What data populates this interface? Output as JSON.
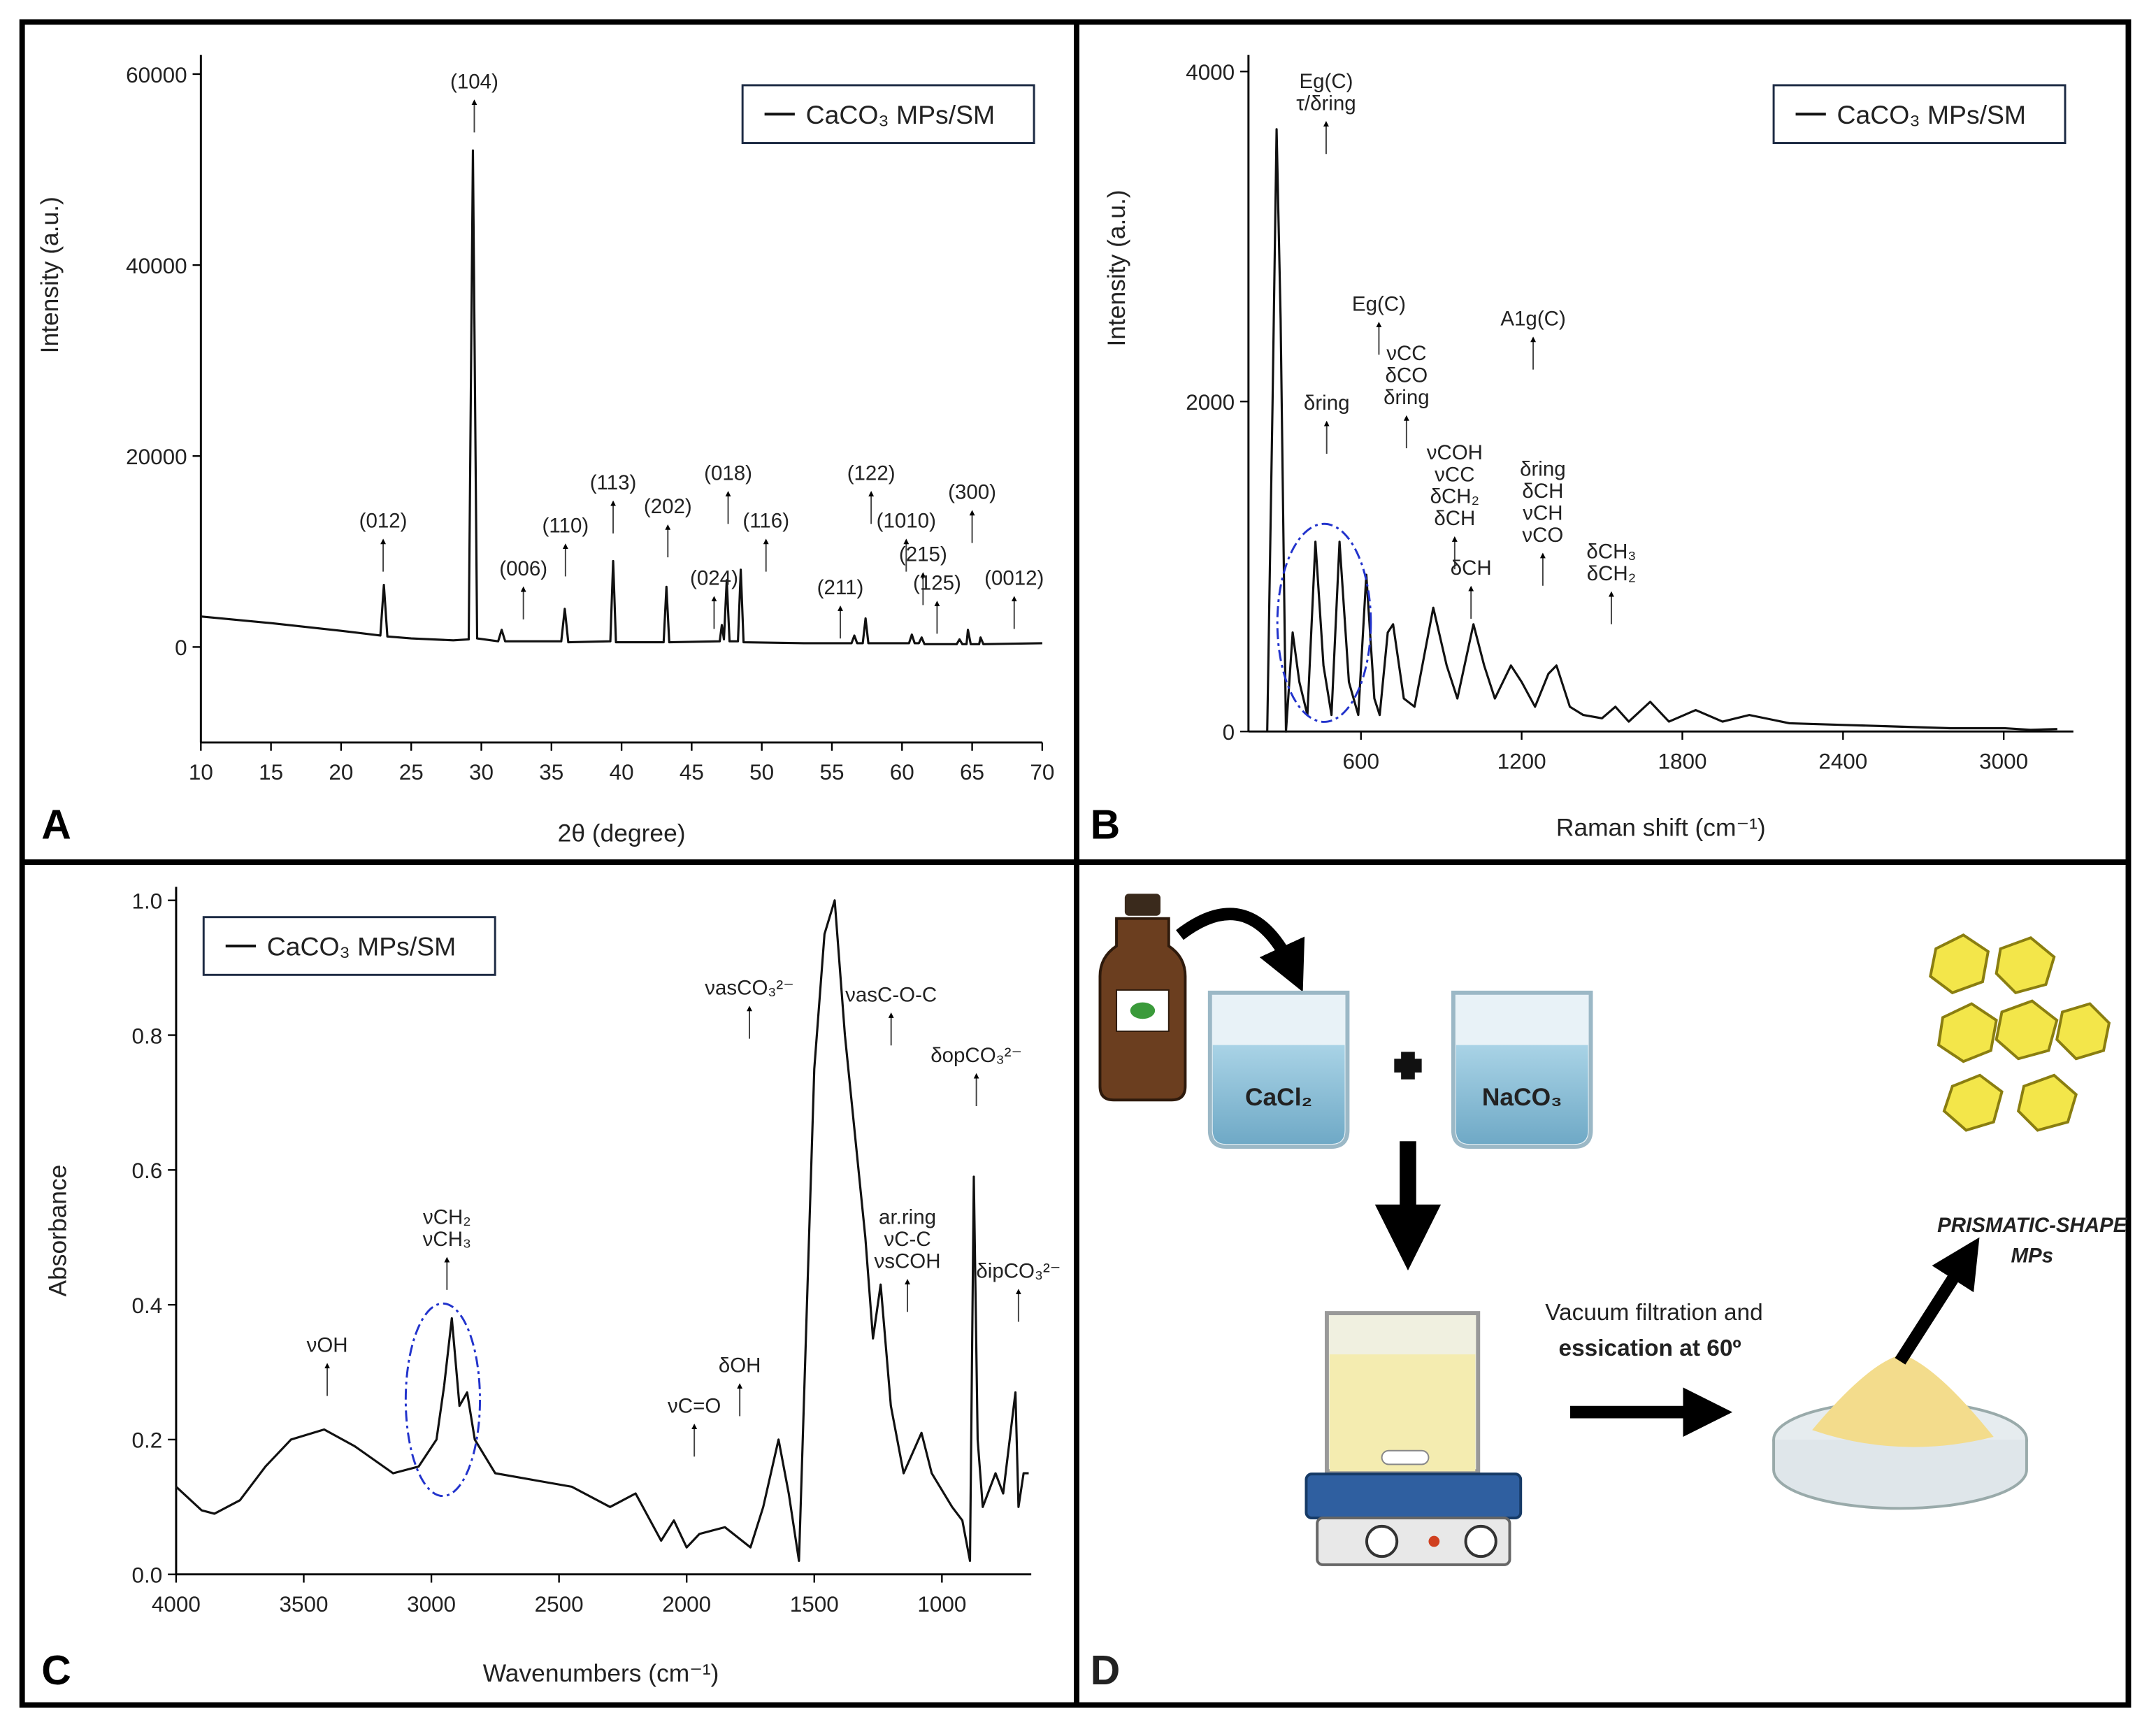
{
  "chart_data": [
    {
      "type": "line",
      "panel": "A",
      "x_label": "2θ (degree)",
      "y_label": "Intensity (a.u.)",
      "legend": "top-right",
      "xlim": [
        10,
        70
      ],
      "ylim": [
        -10000,
        62000
      ],
      "xticks": [
        10,
        15,
        20,
        25,
        30,
        35,
        40,
        45,
        50,
        55,
        60,
        65,
        70
      ],
      "yticks": [
        0,
        20000,
        40000,
        60000
      ],
      "series": [
        {
          "name": "CaCO₃ MPs/SM",
          "color": "#111111",
          "x": [
            10,
            15,
            20,
            22.8,
            23.05,
            23.3,
            25,
            28,
            29.1,
            29.4,
            29.7,
            31.2,
            31.45,
            31.7,
            35.7,
            35.95,
            36.2,
            39.2,
            39.4,
            39.6,
            43.0,
            43.2,
            43.4,
            47.0,
            47.15,
            47.3,
            47.5,
            47.7,
            48.3,
            48.5,
            48.7,
            53,
            56.4,
            56.6,
            56.8,
            57.2,
            57.4,
            57.6,
            60.5,
            60.7,
            60.9,
            61.2,
            61.4,
            61.6,
            63.9,
            64.1,
            64.3,
            64.6,
            64.7,
            64.9,
            65.5,
            65.6,
            65.8,
            70
          ],
          "values": [
            3200,
            2500,
            1700,
            1200,
            6500,
            1100,
            900,
            700,
            800,
            52000,
            900,
            600,
            1800,
            600,
            600,
            4000,
            500,
            600,
            9000,
            500,
            500,
            6300,
            500,
            600,
            2300,
            800,
            7000,
            600,
            600,
            8100,
            500,
            400,
            400,
            1200,
            400,
            400,
            3000,
            400,
            400,
            1300,
            400,
            400,
            1000,
            300,
            300,
            800,
            300,
            300,
            1800,
            300,
            300,
            1000,
            300,
            400
          ]
        }
      ],
      "annotations": [
        {
          "lines": [
            "(012)"
          ],
          "x": 23,
          "y": 12500
        },
        {
          "lines": [
            "(104)"
          ],
          "x": 29.5,
          "y": 58500
        },
        {
          "lines": [
            "(006)"
          ],
          "x": 33,
          "y": 7500
        },
        {
          "lines": [
            "(110)"
          ],
          "x": 36,
          "y": 12000
        },
        {
          "lines": [
            "(113)"
          ],
          "x": 39.4,
          "y": 16500
        },
        {
          "lines": [
            "(202)"
          ],
          "x": 43.3,
          "y": 14000
        },
        {
          "lines": [
            "(024)"
          ],
          "x": 46.6,
          "y": 6500
        },
        {
          "lines": [
            "(018)"
          ],
          "x": 47.6,
          "y": 17500
        },
        {
          "lines": [
            "(116)"
          ],
          "x": 50.3,
          "y": 12500
        },
        {
          "lines": [
            "(211)"
          ],
          "x": 55.6,
          "y": 5500
        },
        {
          "lines": [
            "(122)"
          ],
          "x": 57.8,
          "y": 17500
        },
        {
          "lines": [
            "(1010)"
          ],
          "x": 60.3,
          "y": 12500
        },
        {
          "lines": [
            "(215)"
          ],
          "x": 61.5,
          "y": 9000
        },
        {
          "lines": [
            "(125)"
          ],
          "x": 62.5,
          "y": 6000
        },
        {
          "lines": [
            "(300)"
          ],
          "x": 65,
          "y": 15500
        },
        {
          "lines": [
            "(0012)"
          ],
          "x": 68,
          "y": 6500
        }
      ]
    },
    {
      "type": "line",
      "panel": "B",
      "x_label": "Raman shift (cm⁻¹)",
      "y_label": "Intensity (a.u.)",
      "legend": "top-right",
      "xlim": [
        180,
        3260
      ],
      "ylim": [
        0,
        4100
      ],
      "xticks": [
        600,
        1200,
        1800,
        2400,
        3000
      ],
      "yticks": [
        0,
        2000,
        4000
      ],
      "series": [
        {
          "name": "CaCO₃ MPs/SM",
          "color": "#111111",
          "x": [
            250,
            270,
            285,
            300,
            320,
            345,
            370,
            400,
            430,
            460,
            490,
            520,
            555,
            590,
            620,
            650,
            670,
            700,
            720,
            760,
            800,
            870,
            920,
            960,
            1020,
            1060,
            1100,
            1160,
            1200,
            1250,
            1300,
            1330,
            1380,
            1430,
            1500,
            1550,
            1600,
            1680,
            1750,
            1850,
            1950,
            2050,
            2200,
            2400,
            2600,
            2800,
            3000,
            3100,
            3200
          ],
          "values": [
            0,
            2000,
            3650,
            2500,
            0,
            600,
            300,
            100,
            1150,
            400,
            100,
            1150,
            300,
            100,
            950,
            200,
            100,
            600,
            650,
            200,
            150,
            750,
            400,
            200,
            650,
            400,
            200,
            400,
            300,
            150,
            350,
            400,
            150,
            100,
            80,
            150,
            60,
            180,
            60,
            130,
            60,
            100,
            50,
            40,
            30,
            20,
            20,
            10,
            15
          ]
        }
      ],
      "annotations": [
        {
          "lines": [
            "Eg(C)",
            "τ/δring"
          ],
          "x": 470,
          "y": 3900
        },
        {
          "lines": [
            "δring"
          ],
          "x": 472,
          "y": 1950
        },
        {
          "lines": [
            "Eg(C)"
          ],
          "x": 667,
          "y": 2550
        },
        {
          "lines": [
            "νCC",
            "δCO",
            "δring"
          ],
          "x": 770,
          "y": 2250
        },
        {
          "lines": [
            "νCOH",
            "νCC",
            "δCH₂",
            "δCH"
          ],
          "x": 950,
          "y": 1650
        },
        {
          "lines": [
            "δCH"
          ],
          "x": 1011,
          "y": 950
        },
        {
          "lines": [
            "A1g(C)"
          ],
          "x": 1243,
          "y": 2460
        },
        {
          "lines": [
            "δring",
            "δCH",
            "νCH",
            "νCO"
          ],
          "x": 1279,
          "y": 1550
        },
        {
          "lines": [
            "δCH₃",
            "δCH₂"
          ],
          "x": 1535,
          "y": 1050
        }
      ]
    },
    {
      "type": "line",
      "panel": "C",
      "x_label": "Wavenumbers (cm⁻¹)",
      "y_label": "Absorbance",
      "legend": "top-left",
      "xlim": [
        4000,
        650
      ],
      "ylim": [
        0,
        1.02
      ],
      "xticks": [
        4000,
        3500,
        3000,
        2500,
        2000,
        1500,
        1000
      ],
      "yticks": [
        {
          "value": 0,
          "label": "0.0"
        },
        0.2,
        0.4,
        0.6,
        0.8,
        {
          "value": 1,
          "label": "1.0"
        }
      ],
      "series": [
        {
          "name": "CaCO₃ MPs/SM",
          "color": "#111111",
          "x": [
            4000,
            3900,
            3850,
            3750,
            3650,
            3550,
            3420,
            3300,
            3150,
            3050,
            2980,
            2950,
            2920,
            2890,
            2860,
            2830,
            2750,
            2600,
            2450,
            2300,
            2200,
            2100,
            2050,
            2000,
            1950,
            1850,
            1750,
            1700,
            1640,
            1600,
            1560,
            1500,
            1460,
            1420,
            1380,
            1300,
            1270,
            1240,
            1200,
            1150,
            1080,
            1040,
            960,
            920,
            890,
            875,
            860,
            840,
            790,
            760,
            712,
            700,
            680,
            660
          ],
          "values": [
            0.13,
            0.095,
            0.09,
            0.11,
            0.16,
            0.2,
            0.215,
            0.19,
            0.15,
            0.16,
            0.2,
            0.28,
            0.38,
            0.25,
            0.27,
            0.2,
            0.15,
            0.14,
            0.13,
            0.1,
            0.12,
            0.05,
            0.08,
            0.04,
            0.06,
            0.07,
            0.04,
            0.1,
            0.2,
            0.12,
            0.02,
            0.75,
            0.95,
            1.0,
            0.8,
            0.5,
            0.35,
            0.43,
            0.25,
            0.15,
            0.21,
            0.15,
            0.1,
            0.08,
            0.02,
            0.59,
            0.2,
            0.1,
            0.15,
            0.12,
            0.27,
            0.1,
            0.15,
            0.15
          ]
        }
      ],
      "annotations": [
        {
          "lines": [
            "νOH"
          ],
          "x": 3408,
          "y": 0.33
        },
        {
          "lines": [
            "νCH₂",
            "νCH₃"
          ],
          "x": 2939,
          "y": 0.52
        },
        {
          "lines": [
            "νC=O"
          ],
          "x": 1970,
          "y": 0.24
        },
        {
          "lines": [
            "δOH"
          ],
          "x": 1792,
          "y": 0.3
        },
        {
          "lines": [
            "νasCO₃²⁻"
          ],
          "x": 1754,
          "y": 0.86
        },
        {
          "lines": [
            "νasC-O-C"
          ],
          "x": 1199,
          "y": 0.85
        },
        {
          "lines": [
            "ar.ring",
            "νC-C",
            "νsCOH"
          ],
          "x": 1135,
          "y": 0.52
        },
        {
          "lines": [
            "δopCO₃²⁻"
          ],
          "x": 865,
          "y": 0.76
        },
        {
          "lines": [
            "δipCO₃²⁻"
          ],
          "x": 700,
          "y": 0.44
        }
      ]
    }
  ],
  "diagram": {
    "panel": "D",
    "beaker_1": "CaCl₂",
    "beaker_2": "NaCO₃",
    "step_line_1": "Vacuum filtration and",
    "step_line_2": "essication at 60º",
    "product_line_1": "PRISMATIC-SHAPE",
    "product_line_2": "MPs"
  }
}
